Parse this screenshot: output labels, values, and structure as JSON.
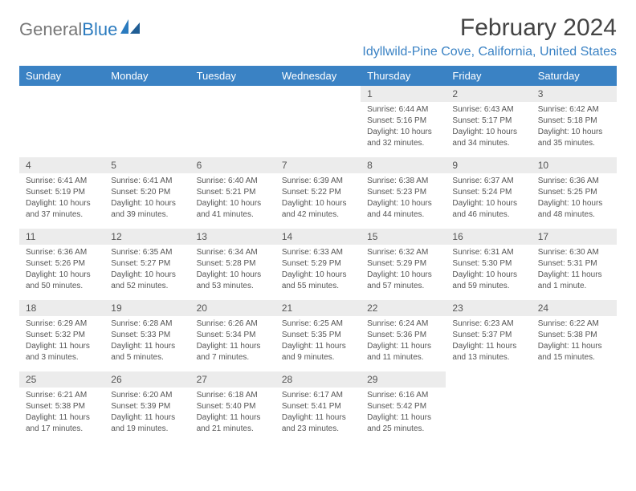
{
  "brand": {
    "part1": "General",
    "part2": "Blue"
  },
  "title": "February 2024",
  "location": "Idyllwild-Pine Cove, California, United States",
  "colors": {
    "header_bg": "#3a82c4",
    "header_text": "#ffffff",
    "daynum_bg": "#ececec",
    "rule": "#2f5d88",
    "brand_blue": "#2b7bbf",
    "body_text": "#555555"
  },
  "dayHeaders": [
    "Sunday",
    "Monday",
    "Tuesday",
    "Wednesday",
    "Thursday",
    "Friday",
    "Saturday"
  ],
  "weeks": [
    [
      {
        "n": "",
        "sr": "",
        "ss": "",
        "dl": ""
      },
      {
        "n": "",
        "sr": "",
        "ss": "",
        "dl": ""
      },
      {
        "n": "",
        "sr": "",
        "ss": "",
        "dl": ""
      },
      {
        "n": "",
        "sr": "",
        "ss": "",
        "dl": ""
      },
      {
        "n": "1",
        "sr": "Sunrise: 6:44 AM",
        "ss": "Sunset: 5:16 PM",
        "dl": "Daylight: 10 hours and 32 minutes."
      },
      {
        "n": "2",
        "sr": "Sunrise: 6:43 AM",
        "ss": "Sunset: 5:17 PM",
        "dl": "Daylight: 10 hours and 34 minutes."
      },
      {
        "n": "3",
        "sr": "Sunrise: 6:42 AM",
        "ss": "Sunset: 5:18 PM",
        "dl": "Daylight: 10 hours and 35 minutes."
      }
    ],
    [
      {
        "n": "4",
        "sr": "Sunrise: 6:41 AM",
        "ss": "Sunset: 5:19 PM",
        "dl": "Daylight: 10 hours and 37 minutes."
      },
      {
        "n": "5",
        "sr": "Sunrise: 6:41 AM",
        "ss": "Sunset: 5:20 PM",
        "dl": "Daylight: 10 hours and 39 minutes."
      },
      {
        "n": "6",
        "sr": "Sunrise: 6:40 AM",
        "ss": "Sunset: 5:21 PM",
        "dl": "Daylight: 10 hours and 41 minutes."
      },
      {
        "n": "7",
        "sr": "Sunrise: 6:39 AM",
        "ss": "Sunset: 5:22 PM",
        "dl": "Daylight: 10 hours and 42 minutes."
      },
      {
        "n": "8",
        "sr": "Sunrise: 6:38 AM",
        "ss": "Sunset: 5:23 PM",
        "dl": "Daylight: 10 hours and 44 minutes."
      },
      {
        "n": "9",
        "sr": "Sunrise: 6:37 AM",
        "ss": "Sunset: 5:24 PM",
        "dl": "Daylight: 10 hours and 46 minutes."
      },
      {
        "n": "10",
        "sr": "Sunrise: 6:36 AM",
        "ss": "Sunset: 5:25 PM",
        "dl": "Daylight: 10 hours and 48 minutes."
      }
    ],
    [
      {
        "n": "11",
        "sr": "Sunrise: 6:36 AM",
        "ss": "Sunset: 5:26 PM",
        "dl": "Daylight: 10 hours and 50 minutes."
      },
      {
        "n": "12",
        "sr": "Sunrise: 6:35 AM",
        "ss": "Sunset: 5:27 PM",
        "dl": "Daylight: 10 hours and 52 minutes."
      },
      {
        "n": "13",
        "sr": "Sunrise: 6:34 AM",
        "ss": "Sunset: 5:28 PM",
        "dl": "Daylight: 10 hours and 53 minutes."
      },
      {
        "n": "14",
        "sr": "Sunrise: 6:33 AM",
        "ss": "Sunset: 5:29 PM",
        "dl": "Daylight: 10 hours and 55 minutes."
      },
      {
        "n": "15",
        "sr": "Sunrise: 6:32 AM",
        "ss": "Sunset: 5:29 PM",
        "dl": "Daylight: 10 hours and 57 minutes."
      },
      {
        "n": "16",
        "sr": "Sunrise: 6:31 AM",
        "ss": "Sunset: 5:30 PM",
        "dl": "Daylight: 10 hours and 59 minutes."
      },
      {
        "n": "17",
        "sr": "Sunrise: 6:30 AM",
        "ss": "Sunset: 5:31 PM",
        "dl": "Daylight: 11 hours and 1 minute."
      }
    ],
    [
      {
        "n": "18",
        "sr": "Sunrise: 6:29 AM",
        "ss": "Sunset: 5:32 PM",
        "dl": "Daylight: 11 hours and 3 minutes."
      },
      {
        "n": "19",
        "sr": "Sunrise: 6:28 AM",
        "ss": "Sunset: 5:33 PM",
        "dl": "Daylight: 11 hours and 5 minutes."
      },
      {
        "n": "20",
        "sr": "Sunrise: 6:26 AM",
        "ss": "Sunset: 5:34 PM",
        "dl": "Daylight: 11 hours and 7 minutes."
      },
      {
        "n": "21",
        "sr": "Sunrise: 6:25 AM",
        "ss": "Sunset: 5:35 PM",
        "dl": "Daylight: 11 hours and 9 minutes."
      },
      {
        "n": "22",
        "sr": "Sunrise: 6:24 AM",
        "ss": "Sunset: 5:36 PM",
        "dl": "Daylight: 11 hours and 11 minutes."
      },
      {
        "n": "23",
        "sr": "Sunrise: 6:23 AM",
        "ss": "Sunset: 5:37 PM",
        "dl": "Daylight: 11 hours and 13 minutes."
      },
      {
        "n": "24",
        "sr": "Sunrise: 6:22 AM",
        "ss": "Sunset: 5:38 PM",
        "dl": "Daylight: 11 hours and 15 minutes."
      }
    ],
    [
      {
        "n": "25",
        "sr": "Sunrise: 6:21 AM",
        "ss": "Sunset: 5:38 PM",
        "dl": "Daylight: 11 hours and 17 minutes."
      },
      {
        "n": "26",
        "sr": "Sunrise: 6:20 AM",
        "ss": "Sunset: 5:39 PM",
        "dl": "Daylight: 11 hours and 19 minutes."
      },
      {
        "n": "27",
        "sr": "Sunrise: 6:18 AM",
        "ss": "Sunset: 5:40 PM",
        "dl": "Daylight: 11 hours and 21 minutes."
      },
      {
        "n": "28",
        "sr": "Sunrise: 6:17 AM",
        "ss": "Sunset: 5:41 PM",
        "dl": "Daylight: 11 hours and 23 minutes."
      },
      {
        "n": "29",
        "sr": "Sunrise: 6:16 AM",
        "ss": "Sunset: 5:42 PM",
        "dl": "Daylight: 11 hours and 25 minutes."
      },
      {
        "n": "",
        "sr": "",
        "ss": "",
        "dl": ""
      },
      {
        "n": "",
        "sr": "",
        "ss": "",
        "dl": ""
      }
    ]
  ]
}
